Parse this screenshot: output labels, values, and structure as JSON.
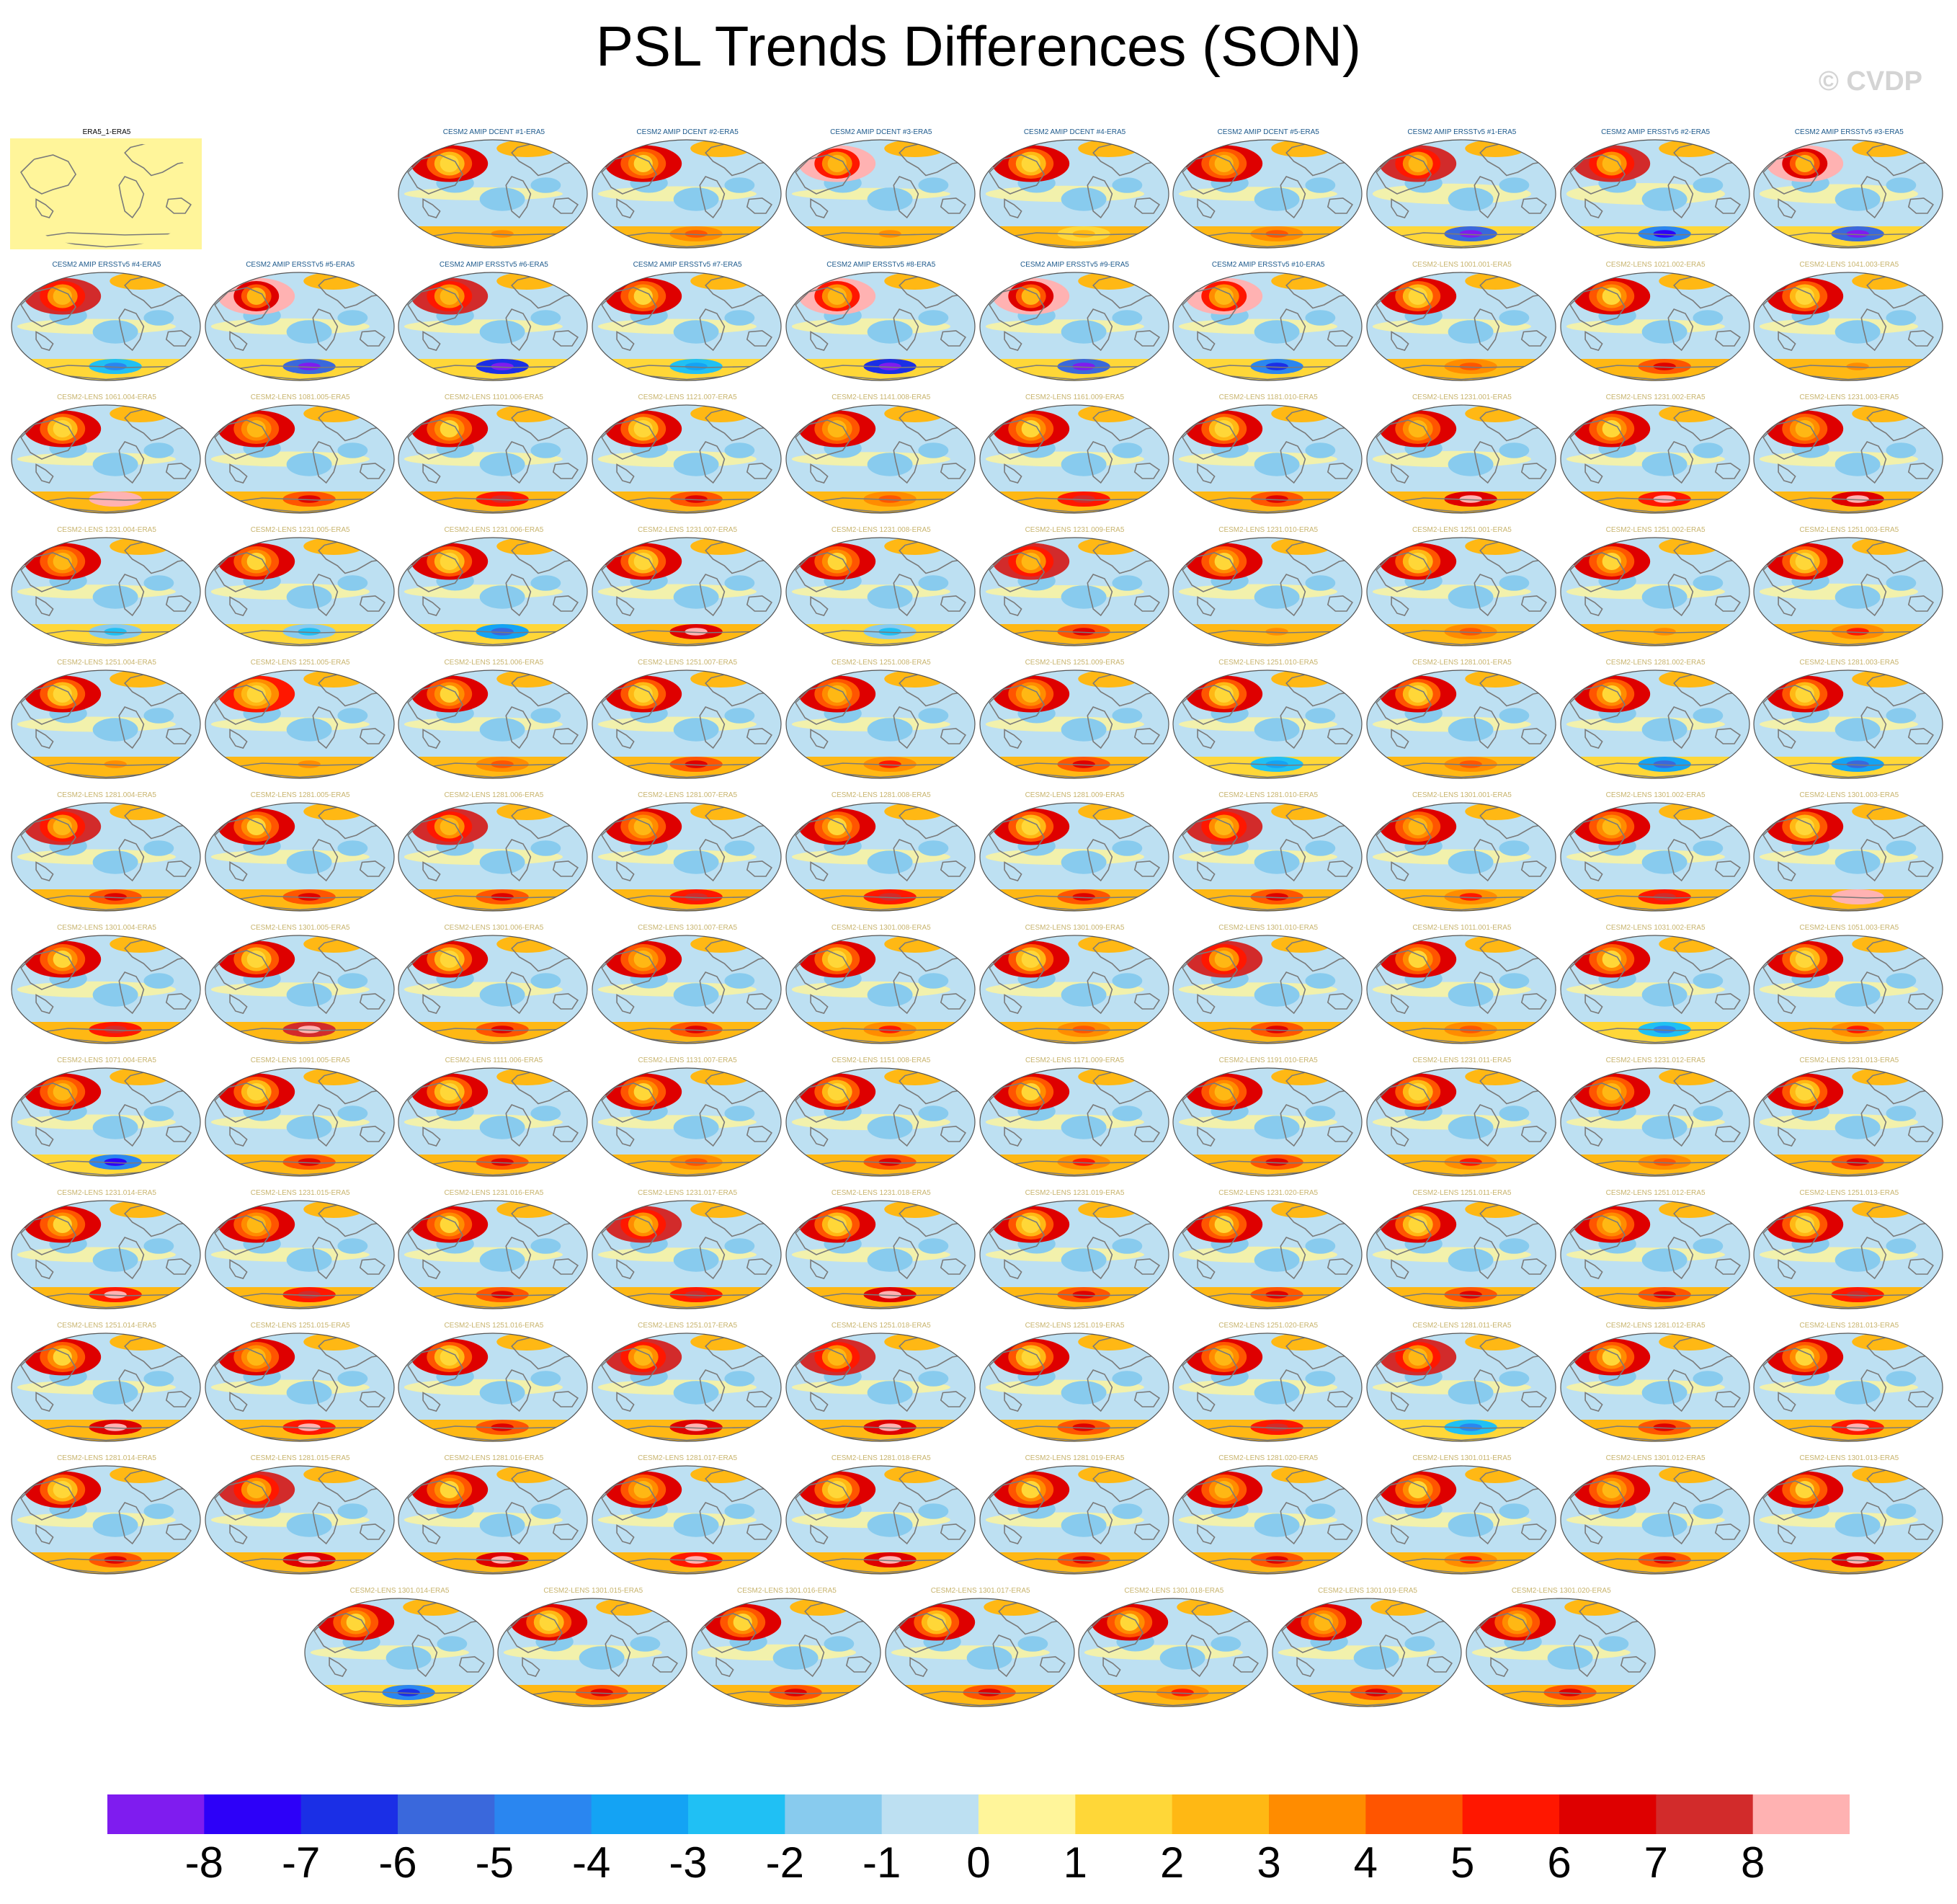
{
  "title": "PSL Trends Differences (SON)",
  "copyright": "© CVDP",
  "colors": {
    "land_outline": "#7a7a7a",
    "ref_fill": "#fff59a",
    "title_ref": "#000000",
    "title_amip": "#1e5a8c",
    "title_lens": "#c8b46e"
  },
  "chart_data": {
    "type": "heatmap",
    "description_units": "hPa",
    "projection": "robinson",
    "colorbar": {
      "levels": [
        -8,
        -7,
        -6,
        -5,
        -4,
        -3,
        -2,
        -1,
        0,
        1,
        2,
        3,
        4,
        5,
        6,
        7,
        8
      ],
      "colors": [
        "#7f1cef",
        "#2d00f8",
        "#1b2fe6",
        "#3a68dc",
        "#2a86f0",
        "#14a3f4",
        "#20c0f4",
        "#88cbee",
        "#bde0f2",
        "#fff59a",
        "#ffd738",
        "#ffb814",
        "#ff8c00",
        "#ff5500",
        "#ff1700",
        "#de0000",
        "#d22b2b",
        "#ffb2b2"
      ]
    },
    "panels": [
      {
        "label": "ERA5_1-ERA5",
        "group": "ref",
        "pattern": [
          0,
          0,
          0
        ]
      },
      {
        "label": "CESM2 AMIP DCENT #1-ERA5",
        "group": "amip",
        "pattern": [
          1.0,
          0.5,
          0.2
        ]
      },
      {
        "label": "CESM2 AMIP DCENT #2-ERA5",
        "group": "amip",
        "pattern": [
          1.1,
          0.6,
          0.4
        ]
      },
      {
        "label": "CESM2 AMIP DCENT #3-ERA5",
        "group": "amip",
        "pattern": [
          1.5,
          0.4,
          0.1
        ]
      },
      {
        "label": "CESM2 AMIP DCENT #4-ERA5",
        "group": "amip",
        "pattern": [
          1.0,
          0.3,
          0.5
        ]
      },
      {
        "label": "CESM2 AMIP DCENT #5-ERA5",
        "group": "amip",
        "pattern": [
          1.2,
          0.6,
          0.3
        ]
      },
      {
        "label": "CESM2 AMIP ERSSTv5 #1-ERA5",
        "group": "amip",
        "pattern": [
          1.4,
          -1.2,
          0.9
        ]
      },
      {
        "label": "CESM2 AMIP ERSSTv5 #2-ERA5",
        "group": "amip",
        "pattern": [
          1.3,
          -1.0,
          1.0
        ]
      },
      {
        "label": "CESM2 AMIP ERSSTv5 #3-ERA5",
        "group": "amip",
        "pattern": [
          1.6,
          -1.1,
          0.8
        ]
      },
      {
        "label": "CESM2 AMIP ERSSTv5 #4-ERA5",
        "group": "amip",
        "pattern": [
          1.3,
          -0.6,
          0.4
        ]
      },
      {
        "label": "CESM2 AMIP ERSSTv5 #5-ERA5",
        "group": "amip",
        "pattern": [
          1.6,
          -1.2,
          0.5
        ]
      },
      {
        "label": "CESM2 AMIP ERSSTv5 #6-ERA5",
        "group": "amip",
        "pattern": [
          1.3,
          -1.3,
          0.3
        ]
      },
      {
        "label": "CESM2 AMIP ERSSTv5 #7-ERA5",
        "group": "amip",
        "pattern": [
          1.1,
          -0.5,
          0.4
        ]
      },
      {
        "label": "CESM2 AMIP ERSSTv5 #8-ERA5",
        "group": "amip",
        "pattern": [
          1.5,
          -1.3,
          0.5
        ]
      },
      {
        "label": "CESM2 AMIP ERSSTv5 #9-ERA5",
        "group": "amip",
        "pattern": [
          1.6,
          -1.2,
          0.3
        ]
      },
      {
        "label": "CESM2 AMIP ERSSTv5 #10-ERA5",
        "group": "amip",
        "pattern": [
          1.5,
          -0.9,
          0.4
        ]
      },
      {
        "label": "CESM2-LENS 1001.001-ERA5",
        "group": "lens",
        "pattern": [
          1.0,
          0.6,
          0.4
        ]
      },
      {
        "label": "CESM2-LENS 1021.002-ERA5",
        "group": "lens",
        "pattern": [
          1.1,
          0.8,
          0.3
        ]
      },
      {
        "label": "CESM2-LENS 1041.003-ERA5",
        "group": "lens",
        "pattern": [
          1.0,
          0.5,
          0.5
        ]
      },
      {
        "label": "CESM2-LENS 1061.004-ERA5",
        "group": "lens",
        "pattern": [
          1.0,
          1.6,
          0.2
        ]
      },
      {
        "label": "CESM2-LENS 1081.005-ERA5",
        "group": "lens",
        "pattern": [
          1.2,
          0.9,
          0.4
        ]
      },
      {
        "label": "CESM2-LENS 1101.006-ERA5",
        "group": "lens",
        "pattern": [
          1.1,
          1.0,
          0.3
        ]
      },
      {
        "label": "CESM2-LENS 1121.007-ERA5",
        "group": "lens",
        "pattern": [
          1.0,
          0.8,
          0.5
        ]
      },
      {
        "label": "CESM2-LENS 1141.008-ERA5",
        "group": "lens",
        "pattern": [
          1.2,
          0.6,
          0.3
        ]
      },
      {
        "label": "CESM2-LENS 1161.009-ERA5",
        "group": "lens",
        "pattern": [
          1.1,
          1.0,
          0.4
        ]
      },
      {
        "label": "CESM2-LENS 1181.010-ERA5",
        "group": "lens",
        "pattern": [
          1.0,
          0.9,
          0.3
        ]
      },
      {
        "label": "CESM2-LENS 1231.001-ERA5",
        "group": "lens",
        "pattern": [
          1.2,
          1.2,
          0.5
        ]
      },
      {
        "label": "CESM2-LENS 1231.002-ERA5",
        "group": "lens",
        "pattern": [
          1.1,
          1.1,
          0.3
        ]
      },
      {
        "label": "CESM2-LENS 1231.003-ERA5",
        "group": "lens",
        "pattern": [
          1.2,
          1.3,
          0.4
        ]
      },
      {
        "label": "CESM2-LENS 1231.004-ERA5",
        "group": "lens",
        "pattern": [
          1.2,
          -0.4,
          0.3
        ]
      },
      {
        "label": "CESM2-LENS 1231.005-ERA5",
        "group": "lens",
        "pattern": [
          1.1,
          -0.3,
          0.5
        ]
      },
      {
        "label": "CESM2-LENS 1231.006-ERA5",
        "group": "lens",
        "pattern": [
          1.0,
          -0.7,
          0.3
        ]
      },
      {
        "label": "CESM2-LENS 1231.007-ERA5",
        "group": "lens",
        "pattern": [
          1.0,
          1.2,
          0.4
        ]
      },
      {
        "label": "CESM2-LENS 1231.008-ERA5",
        "group": "lens",
        "pattern": [
          1.1,
          -0.4,
          0.3
        ]
      },
      {
        "label": "CESM2-LENS 1231.009-ERA5",
        "group": "lens",
        "pattern": [
          1.4,
          0.8,
          0.2
        ]
      },
      {
        "label": "CESM2-LENS 1231.010-ERA5",
        "group": "lens",
        "pattern": [
          1.1,
          0.5,
          0.4
        ]
      },
      {
        "label": "CESM2-LENS 1251.001-ERA5",
        "group": "lens",
        "pattern": [
          1.0,
          0.6,
          0.3
        ]
      },
      {
        "label": "CESM2-LENS 1251.002-ERA5",
        "group": "lens",
        "pattern": [
          1.1,
          0.4,
          0.4
        ]
      },
      {
        "label": "CESM2-LENS 1251.003-ERA5",
        "group": "lens",
        "pattern": [
          1.0,
          0.7,
          0.5
        ]
      },
      {
        "label": "CESM2-LENS 1251.004-ERA5",
        "group": "lens",
        "pattern": [
          1.0,
          0.5,
          0.4
        ]
      },
      {
        "label": "CESM2-LENS 1251.005-ERA5",
        "group": "lens",
        "pattern": [
          0.9,
          0.4,
          0.3
        ]
      },
      {
        "label": "CESM2-LENS 1251.006-ERA5",
        "group": "lens",
        "pattern": [
          1.1,
          0.6,
          0.3
        ]
      },
      {
        "label": "CESM2-LENS 1251.007-ERA5",
        "group": "lens",
        "pattern": [
          1.0,
          0.9,
          0.4
        ]
      },
      {
        "label": "CESM2-LENS 1251.008-ERA5",
        "group": "lens",
        "pattern": [
          1.2,
          0.7,
          0.3
        ]
      },
      {
        "label": "CESM2-LENS 1251.009-ERA5",
        "group": "lens",
        "pattern": [
          1.2,
          0.8,
          0.4
        ]
      },
      {
        "label": "CESM2-LENS 1251.010-ERA5",
        "group": "lens",
        "pattern": [
          1.0,
          -0.5,
          0.3
        ]
      },
      {
        "label": "CESM2-LENS 1281.001-ERA5",
        "group": "lens",
        "pattern": [
          1.0,
          0.6,
          0.4
        ]
      },
      {
        "label": "CESM2-LENS 1281.002-ERA5",
        "group": "lens",
        "pattern": [
          1.1,
          -0.8,
          0.3
        ]
      },
      {
        "label": "CESM2-LENS 1281.003-ERA5",
        "group": "lens",
        "pattern": [
          1.0,
          -0.7,
          0.4
        ]
      },
      {
        "label": "CESM2-LENS 1281.004-ERA5",
        "group": "lens",
        "pattern": [
          1.3,
          0.9,
          0.4
        ]
      },
      {
        "label": "CESM2-LENS 1281.005-ERA5",
        "group": "lens",
        "pattern": [
          1.1,
          0.8,
          0.3
        ]
      },
      {
        "label": "CESM2-LENS 1281.006-ERA5",
        "group": "lens",
        "pattern": [
          1.3,
          0.9,
          0.5
        ]
      },
      {
        "label": "CESM2-LENS 1281.007-ERA5",
        "group": "lens",
        "pattern": [
          1.2,
          1.0,
          0.3
        ]
      },
      {
        "label": "CESM2-LENS 1281.008-ERA5",
        "group": "lens",
        "pattern": [
          1.1,
          1.0,
          0.4
        ]
      },
      {
        "label": "CESM2-LENS 1281.009-ERA5",
        "group": "lens",
        "pattern": [
          1.0,
          0.8,
          0.5
        ]
      },
      {
        "label": "CESM2-LENS 1281.010-ERA5",
        "group": "lens",
        "pattern": [
          1.3,
          0.9,
          0.3
        ]
      },
      {
        "label": "CESM2-LENS 1301.001-ERA5",
        "group": "lens",
        "pattern": [
          1.2,
          0.7,
          0.4
        ]
      },
      {
        "label": "CESM2-LENS 1301.002-ERA5",
        "group": "lens",
        "pattern": [
          1.2,
          1.0,
          0.3
        ]
      },
      {
        "label": "CESM2-LENS 1301.003-ERA5",
        "group": "lens",
        "pattern": [
          1.0,
          1.7,
          0.4
        ]
      },
      {
        "label": "CESM2-LENS 1301.004-ERA5",
        "group": "lens",
        "pattern": [
          1.1,
          1.0,
          0.5
        ]
      },
      {
        "label": "CESM2-LENS 1301.005-ERA5",
        "group": "lens",
        "pattern": [
          1.0,
          1.4,
          0.3
        ]
      },
      {
        "label": "CESM2-LENS 1301.006-ERA5",
        "group": "lens",
        "pattern": [
          1.0,
          0.8,
          0.4
        ]
      },
      {
        "label": "CESM2-LENS 1301.007-ERA5",
        "group": "lens",
        "pattern": [
          1.2,
          0.9,
          0.3
        ]
      },
      {
        "label": "CESM2-LENS 1301.008-ERA5",
        "group": "lens",
        "pattern": [
          1.0,
          0.7,
          0.5
        ]
      },
      {
        "label": "CESM2-LENS 1301.009-ERA5",
        "group": "lens",
        "pattern": [
          1.0,
          0.6,
          0.4
        ]
      },
      {
        "label": "CESM2-LENS 1301.010-ERA5",
        "group": "lens",
        "pattern": [
          1.3,
          0.8,
          0.3
        ]
      },
      {
        "label": "CESM2-LENS 1011.001-ERA5",
        "group": "lens",
        "pattern": [
          1.1,
          0.6,
          0.4
        ]
      },
      {
        "label": "CESM2-LENS 1031.002-ERA5",
        "group": "lens",
        "pattern": [
          1.1,
          -0.6,
          0.3
        ]
      },
      {
        "label": "CESM2-LENS 1051.003-ERA5",
        "group": "lens",
        "pattern": [
          1.0,
          0.7,
          0.5
        ]
      },
      {
        "label": "CESM2-LENS 1071.004-ERA5",
        "group": "lens",
        "pattern": [
          1.2,
          -1.0,
          0.4
        ]
      },
      {
        "label": "CESM2-LENS 1091.005-ERA5",
        "group": "lens",
        "pattern": [
          1.0,
          0.8,
          0.3
        ]
      },
      {
        "label": "CESM2-LENS 1111.006-ERA5",
        "group": "lens",
        "pattern": [
          1.0,
          0.9,
          0.4
        ]
      },
      {
        "label": "CESM2-LENS 1131.007-ERA5",
        "group": "lens",
        "pattern": [
          1.1,
          0.6,
          0.3
        ]
      },
      {
        "label": "CESM2-LENS 1151.008-ERA5",
        "group": "lens",
        "pattern": [
          1.0,
          0.9,
          0.5
        ]
      },
      {
        "label": "CESM2-LENS 1171.009-ERA5",
        "group": "lens",
        "pattern": [
          1.1,
          0.7,
          0.4
        ]
      },
      {
        "label": "CESM2-LENS 1191.010-ERA5",
        "group": "lens",
        "pattern": [
          1.2,
          0.8,
          0.3
        ]
      },
      {
        "label": "CESM2-LENS 1231.011-ERA5",
        "group": "lens",
        "pattern": [
          1.0,
          0.7,
          0.4
        ]
      },
      {
        "label": "CESM2-LENS 1231.012-ERA5",
        "group": "lens",
        "pattern": [
          1.2,
          0.6,
          0.3
        ]
      },
      {
        "label": "CESM2-LENS 1231.013-ERA5",
        "group": "lens",
        "pattern": [
          1.0,
          0.8,
          0.5
        ]
      },
      {
        "label": "CESM2-LENS 1231.014-ERA5",
        "group": "lens",
        "pattern": [
          1.1,
          1.1,
          0.4
        ]
      },
      {
        "label": "CESM2-LENS 1231.015-ERA5",
        "group": "lens",
        "pattern": [
          1.2,
          1.0,
          0.3
        ]
      },
      {
        "label": "CESM2-LENS 1231.016-ERA5",
        "group": "lens",
        "pattern": [
          1.1,
          0.9,
          0.4
        ]
      },
      {
        "label": "CESM2-LENS 1231.017-ERA5",
        "group": "lens",
        "pattern": [
          1.4,
          1.0,
          0.3
        ]
      },
      {
        "label": "CESM2-LENS 1231.018-ERA5",
        "group": "lens",
        "pattern": [
          1.0,
          1.2,
          0.4
        ]
      },
      {
        "label": "CESM2-LENS 1231.019-ERA5",
        "group": "lens",
        "pattern": [
          1.0,
          0.9,
          0.3
        ]
      },
      {
        "label": "CESM2-LENS 1231.020-ERA5",
        "group": "lens",
        "pattern": [
          1.1,
          0.8,
          0.5
        ]
      },
      {
        "label": "CESM2-LENS 1251.011-ERA5",
        "group": "lens",
        "pattern": [
          1.0,
          0.9,
          0.4
        ]
      },
      {
        "label": "CESM2-LENS 1251.012-ERA5",
        "group": "lens",
        "pattern": [
          1.2,
          0.8,
          0.3
        ]
      },
      {
        "label": "CESM2-LENS 1251.013-ERA5",
        "group": "lens",
        "pattern": [
          1.0,
          1.0,
          0.4
        ]
      },
      {
        "label": "CESM2-LENS 1251.014-ERA5",
        "group": "lens",
        "pattern": [
          1.1,
          1.2,
          0.3
        ]
      },
      {
        "label": "CESM2-LENS 1251.015-ERA5",
        "group": "lens",
        "pattern": [
          1.2,
          1.1,
          0.4
        ]
      },
      {
        "label": "CESM2-LENS 1251.016-ERA5",
        "group": "lens",
        "pattern": [
          1.0,
          0.8,
          0.5
        ]
      },
      {
        "label": "CESM2-LENS 1251.017-ERA5",
        "group": "lens",
        "pattern": [
          1.3,
          1.3,
          0.4
        ]
      },
      {
        "label": "CESM2-LENS 1251.018-ERA5",
        "group": "lens",
        "pattern": [
          1.3,
          1.2,
          0.3
        ]
      },
      {
        "label": "CESM2-LENS 1251.019-ERA5",
        "group": "lens",
        "pattern": [
          1.0,
          0.9,
          0.4
        ]
      },
      {
        "label": "CESM2-LENS 1251.020-ERA5",
        "group": "lens",
        "pattern": [
          1.2,
          1.0,
          0.5
        ]
      },
      {
        "label": "CESM2-LENS 1281.011-ERA5",
        "group": "lens",
        "pattern": [
          1.3,
          -0.6,
          0.3
        ]
      },
      {
        "label": "CESM2-LENS 1281.012-ERA5",
        "group": "lens",
        "pattern": [
          1.1,
          0.8,
          0.4
        ]
      },
      {
        "label": "CESM2-LENS 1281.013-ERA5",
        "group": "lens",
        "pattern": [
          1.1,
          1.1,
          0.3
        ]
      },
      {
        "label": "CESM2-LENS 1281.014-ERA5",
        "group": "lens",
        "pattern": [
          1.0,
          0.8,
          0.4
        ]
      },
      {
        "label": "CESM2-LENS 1281.015-ERA5",
        "group": "lens",
        "pattern": [
          1.3,
          1.3,
          0.3
        ]
      },
      {
        "label": "CESM2-LENS 1281.016-ERA5",
        "group": "lens",
        "pattern": [
          1.1,
          1.2,
          0.4
        ]
      },
      {
        "label": "CESM2-LENS 1281.017-ERA5",
        "group": "lens",
        "pattern": [
          1.2,
          1.1,
          0.3
        ]
      },
      {
        "label": "CESM2-LENS 1281.018-ERA5",
        "group": "lens",
        "pattern": [
          1.0,
          1.3,
          0.5
        ]
      },
      {
        "label": "CESM2-LENS 1281.019-ERA5",
        "group": "lens",
        "pattern": [
          1.1,
          0.9,
          0.4
        ]
      },
      {
        "label": "CESM2-LENS 1281.020-ERA5",
        "group": "lens",
        "pattern": [
          1.2,
          0.8,
          0.3
        ]
      },
      {
        "label": "CESM2-LENS 1301.011-ERA5",
        "group": "lens",
        "pattern": [
          1.1,
          0.7,
          0.4
        ]
      },
      {
        "label": "CESM2-LENS 1301.012-ERA5",
        "group": "lens",
        "pattern": [
          1.2,
          0.9,
          0.3
        ]
      },
      {
        "label": "CESM2-LENS 1301.013-ERA5",
        "group": "lens",
        "pattern": [
          1.1,
          1.3,
          0.4
        ]
      },
      {
        "label": "CESM2-LENS 1301.014-ERA5",
        "group": "lens",
        "pattern": [
          1.1,
          -0.9,
          0.3
        ]
      },
      {
        "label": "CESM2-LENS 1301.015-ERA5",
        "group": "lens",
        "pattern": [
          1.0,
          0.8,
          0.4
        ]
      },
      {
        "label": "CESM2-LENS 1301.016-ERA5",
        "group": "lens",
        "pattern": [
          1.1,
          0.9,
          0.5
        ]
      },
      {
        "label": "CESM2-LENS 1301.017-ERA5",
        "group": "lens",
        "pattern": [
          1.0,
          0.8,
          0.3
        ]
      },
      {
        "label": "CESM2-LENS 1301.018-ERA5",
        "group": "lens",
        "pattern": [
          1.1,
          0.7,
          0.4
        ]
      },
      {
        "label": "CESM2-LENS 1301.019-ERA5",
        "group": "lens",
        "pattern": [
          1.2,
          0.9,
          0.3
        ]
      },
      {
        "label": "CESM2-LENS 1301.020-ERA5",
        "group": "lens",
        "pattern": [
          1.2,
          0.8,
          0.4
        ]
      }
    ]
  }
}
